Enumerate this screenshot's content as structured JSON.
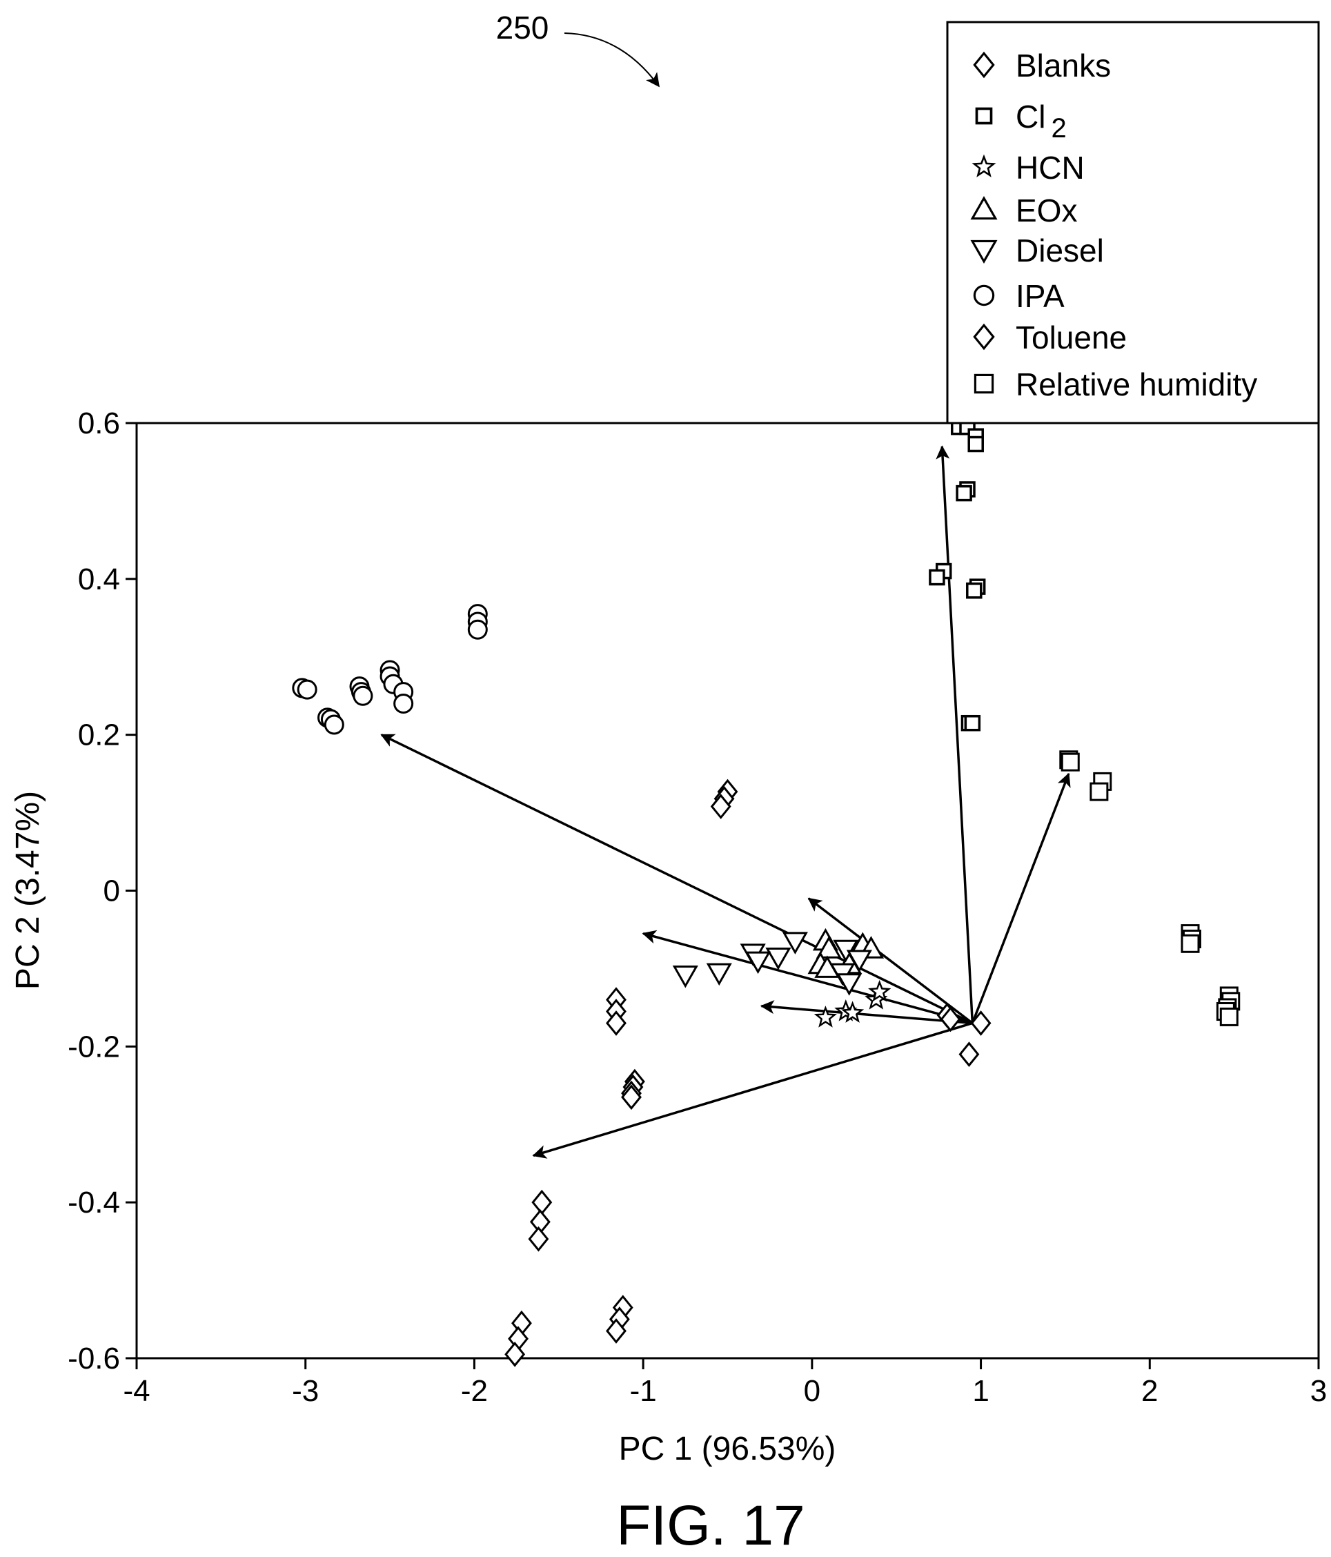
{
  "reference": "250",
  "figure_label": "FIG. 17",
  "chart_data": {
    "type": "scatter",
    "title": "",
    "xlabel": "PC 1 (96.53%)",
    "ylabel": "PC 2 (3.47%)",
    "xlim": [
      -4,
      3
    ],
    "ylim": [
      -0.6,
      0.6
    ],
    "xticks": [
      -4,
      -3,
      -2,
      -1,
      0,
      1,
      2,
      3
    ],
    "yticks": [
      -0.6,
      -0.4,
      -0.2,
      0,
      0.2,
      0.4,
      0.6
    ],
    "xtick_labels": [
      "-4",
      "-3",
      "-2",
      "-1",
      "0",
      "1",
      "2",
      "3"
    ],
    "ytick_labels": [
      "-0.6",
      "-0.4",
      "-0.2",
      "0",
      "0.2",
      "0.4",
      "0.6"
    ],
    "grid": false,
    "legend_position": "top-right",
    "legend": [
      {
        "label": "Blanks",
        "marker": "diamond"
      },
      {
        "label": "Cl",
        "subscript": "2",
        "marker": "square-small"
      },
      {
        "label": "HCN",
        "marker": "star"
      },
      {
        "label": "EOx",
        "marker": "triangle-up"
      },
      {
        "label": "Diesel",
        "marker": "triangle-down"
      },
      {
        "label": "IPA",
        "marker": "circle"
      },
      {
        "label": "Toluene",
        "marker": "diamond"
      },
      {
        "label": "Relative humidity",
        "marker": "square"
      }
    ],
    "series": [
      {
        "name": "Blanks",
        "marker": "diamond",
        "points": [
          [
            0.8,
            -0.16
          ],
          [
            0.82,
            -0.165
          ],
          [
            1.0,
            -0.17
          ],
          [
            0.93,
            -0.21
          ]
        ]
      },
      {
        "name": "Cl2",
        "marker": "square-small",
        "points": [
          [
            0.87,
            0.595
          ],
          [
            0.92,
            0.595
          ],
          [
            0.97,
            0.583
          ],
          [
            0.97,
            0.573
          ],
          [
            0.92,
            0.515
          ],
          [
            0.9,
            0.51
          ],
          [
            0.78,
            0.41
          ],
          [
            0.74,
            0.402
          ],
          [
            0.98,
            0.39
          ],
          [
            0.96,
            0.385
          ],
          [
            0.93,
            0.215
          ],
          [
            0.95,
            0.215
          ]
        ]
      },
      {
        "name": "HCN",
        "marker": "star",
        "points": [
          [
            0.08,
            -0.163
          ],
          [
            0.2,
            -0.155
          ],
          [
            0.24,
            -0.157
          ],
          [
            0.38,
            -0.14
          ],
          [
            0.4,
            -0.13
          ]
        ]
      },
      {
        "name": "EOx",
        "marker": "triangle-up",
        "points": [
          [
            0.08,
            -0.065
          ],
          [
            0.1,
            -0.075
          ],
          [
            0.3,
            -0.07
          ],
          [
            0.35,
            -0.075
          ],
          [
            0.05,
            -0.095
          ],
          [
            0.09,
            -0.1
          ],
          [
            0.22,
            -0.095
          ]
        ]
      },
      {
        "name": "Diesel",
        "marker": "triangle-down",
        "points": [
          [
            -0.1,
            -0.065
          ],
          [
            -0.35,
            -0.08
          ],
          [
            -0.2,
            -0.085
          ],
          [
            -0.32,
            -0.09
          ],
          [
            -0.55,
            -0.105
          ],
          [
            -0.75,
            -0.108
          ],
          [
            0.2,
            -0.075
          ],
          [
            0.28,
            -0.088
          ],
          [
            0.18,
            -0.105
          ],
          [
            0.22,
            -0.118
          ]
        ]
      },
      {
        "name": "IPA",
        "marker": "circle",
        "points": [
          [
            -1.98,
            0.355
          ],
          [
            -1.98,
            0.345
          ],
          [
            -1.98,
            0.335
          ],
          [
            -3.02,
            0.26
          ],
          [
            -2.99,
            0.258
          ],
          [
            -2.68,
            0.262
          ],
          [
            -2.67,
            0.255
          ],
          [
            -2.66,
            0.25
          ],
          [
            -2.5,
            0.283
          ],
          [
            -2.5,
            0.275
          ],
          [
            -2.48,
            0.265
          ],
          [
            -2.42,
            0.255
          ],
          [
            -2.42,
            0.24
          ],
          [
            -2.87,
            0.222
          ],
          [
            -2.85,
            0.22
          ],
          [
            -2.83,
            0.213
          ]
        ]
      },
      {
        "name": "Toluene",
        "marker": "diamond",
        "points": [
          [
            -0.5,
            0.127
          ],
          [
            -0.52,
            0.118
          ],
          [
            -0.54,
            0.108
          ],
          [
            -1.16,
            -0.14
          ],
          [
            -1.16,
            -0.155
          ],
          [
            -1.16,
            -0.17
          ],
          [
            -1.05,
            -0.245
          ],
          [
            -1.06,
            -0.252
          ],
          [
            -1.07,
            -0.26
          ],
          [
            -1.07,
            -0.265
          ],
          [
            -1.6,
            -0.4
          ],
          [
            -1.61,
            -0.425
          ],
          [
            -1.62,
            -0.447
          ],
          [
            -1.72,
            -0.555
          ],
          [
            -1.74,
            -0.575
          ],
          [
            -1.76,
            -0.595
          ],
          [
            -1.12,
            -0.535
          ],
          [
            -1.14,
            -0.55
          ],
          [
            -1.16,
            -0.565
          ]
        ]
      },
      {
        "name": "Relative humidity",
        "marker": "square",
        "points": [
          [
            1.52,
            0.168
          ],
          [
            1.53,
            0.165
          ],
          [
            1.72,
            0.14
          ],
          [
            1.7,
            0.127
          ],
          [
            2.24,
            -0.055
          ],
          [
            2.25,
            -0.062
          ],
          [
            2.24,
            -0.068
          ],
          [
            2.47,
            -0.135
          ],
          [
            2.48,
            -0.142
          ],
          [
            2.46,
            -0.15
          ],
          [
            2.45,
            -0.155
          ],
          [
            2.47,
            -0.162
          ]
        ]
      }
    ],
    "vectors": {
      "origin": [
        0.95,
        -0.17
      ],
      "tips": [
        [
          0.77,
          0.57
        ],
        [
          1.52,
          0.15
        ],
        [
          -2.55,
          0.2
        ],
        [
          -1.65,
          -0.34
        ],
        [
          -1.0,
          -0.055
        ],
        [
          -0.02,
          -0.01
        ],
        [
          -0.3,
          -0.148
        ]
      ]
    }
  }
}
